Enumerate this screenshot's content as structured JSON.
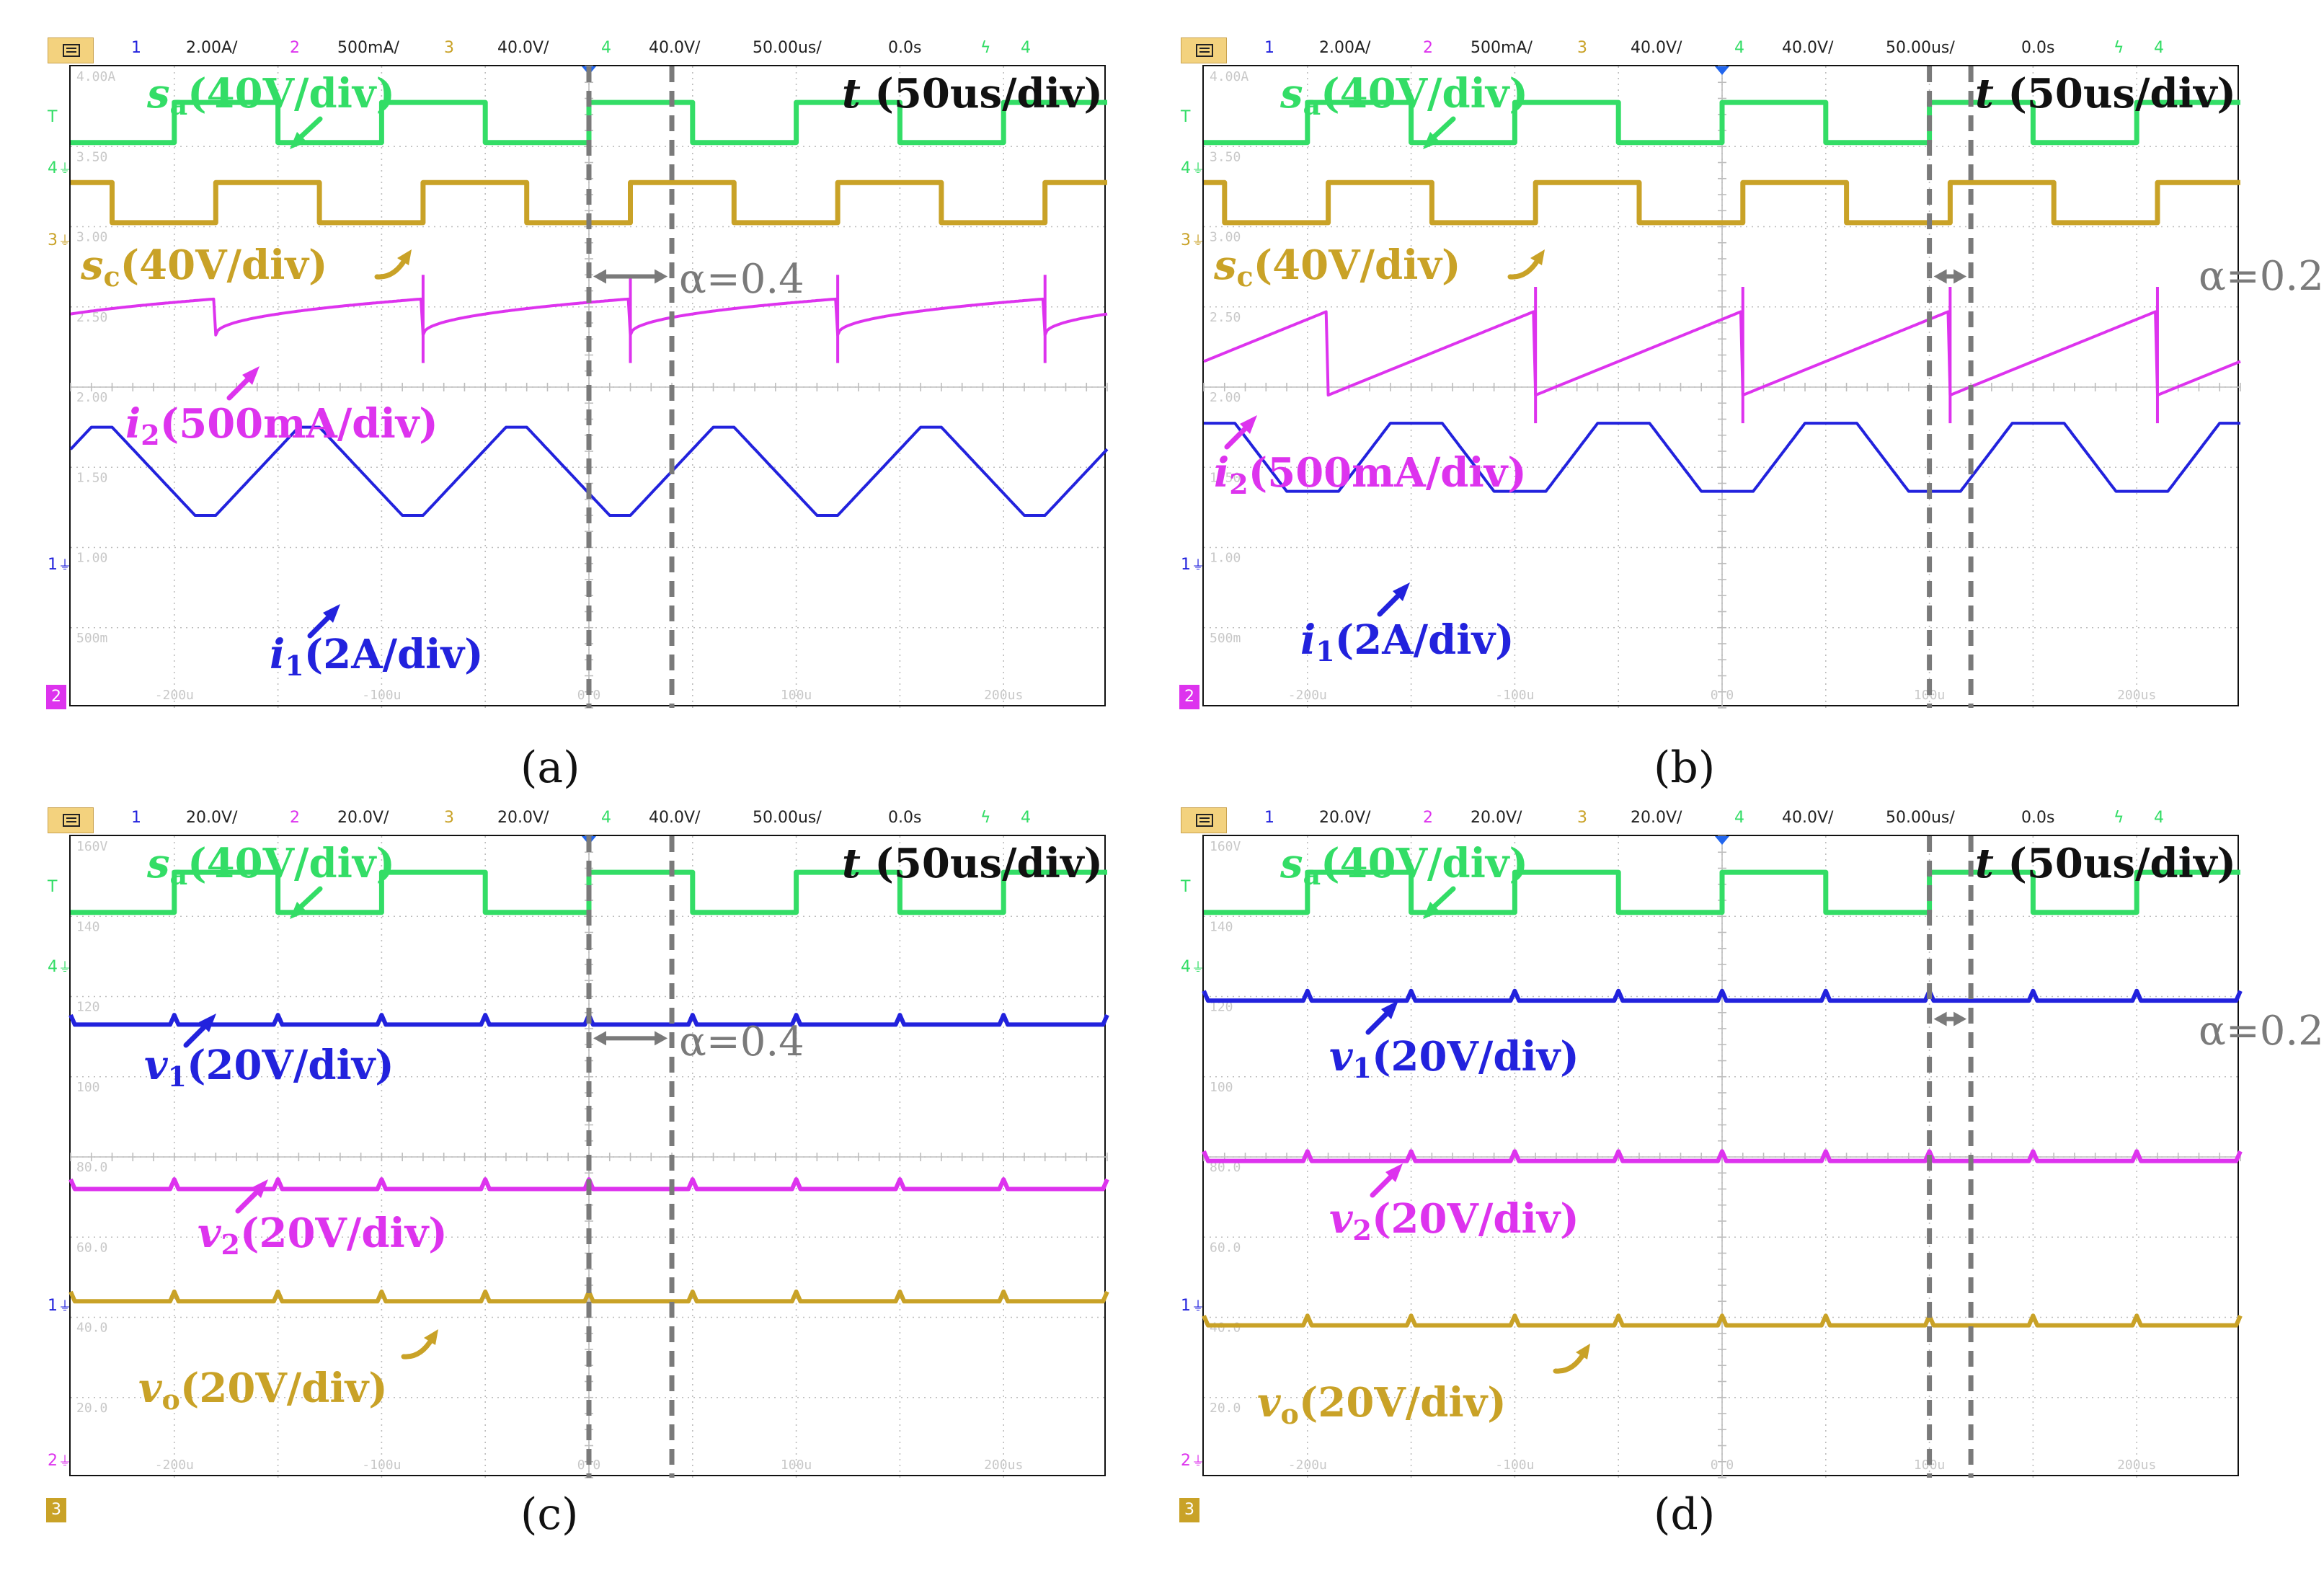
{
  "colors": {
    "ch1": "#2222dd",
    "ch2": "#dd33ee",
    "ch3": "#c9a227",
    "ch4": "#33dd66",
    "grid": "#bdbdbd",
    "cursor": "#7a7a7a",
    "chip": "#f3d27e"
  },
  "panels": [
    {
      "id": "a",
      "caption": "(a)",
      "toolbar": {
        "ch1_num": "1",
        "ch1_scale": "2.00A/",
        "ch2_num": "2",
        "ch2_scale": "500mA/",
        "ch3_num": "3",
        "ch3_scale": "40.0V/",
        "ch4_num": "4",
        "ch4_scale": "40.0V/",
        "timebase": "50.00us/",
        "delay": "0.0s",
        "trig_icon": "trigger-edge-icon",
        "trig_ch": "4"
      },
      "time_label": "(50us/div)",
      "alpha_label": "α=0.4",
      "x_ticks": [
        "-200u",
        "-100u",
        "0.0",
        "100u",
        "200us"
      ],
      "y_ticks": [
        "4.00A",
        "3.50",
        "3.00",
        "2.50",
        "2.00",
        "1.50",
        "1.00",
        "500m"
      ],
      "channel_markers": [
        {
          "label": "T",
          "color": "#33dd66"
        },
        {
          "label": "4",
          "color": "#33dd66"
        },
        {
          "label": "3",
          "color": "#c9a227"
        },
        {
          "label": "1",
          "color": "#2222dd"
        },
        {
          "label": "2",
          "color": "#dd33ee"
        }
      ],
      "signals": [
        {
          "sym": "s",
          "sub": "a",
          "scale": "(40V/div)",
          "color": "#33dd66"
        },
        {
          "sym": "s",
          "sub": "c",
          "scale": "(40V/div)",
          "color": "#c9a227"
        },
        {
          "sym": "i",
          "sub": "2",
          "scale": "(500mA/div)",
          "color": "#dd33ee"
        },
        {
          "sym": "i",
          "sub": "1",
          "scale": "(2A/div)",
          "color": "#2222dd"
        }
      ]
    },
    {
      "id": "b",
      "caption": "(b)",
      "toolbar": {
        "ch1_num": "1",
        "ch1_scale": "2.00A/",
        "ch2_num": "2",
        "ch2_scale": "500mA/",
        "ch3_num": "3",
        "ch3_scale": "40.0V/",
        "ch4_num": "4",
        "ch4_scale": "40.0V/",
        "timebase": "50.00us/",
        "delay": "0.0s",
        "trig_icon": "trigger-edge-icon",
        "trig_ch": "4"
      },
      "time_label": "(50us/div)",
      "alpha_label": "α=0.2",
      "x_ticks": [
        "-200u",
        "-100u",
        "0.0",
        "100u",
        "200us"
      ],
      "y_ticks": [
        "4.00A",
        "3.50",
        "3.00",
        "2.50",
        "2.00",
        "1.50",
        "1.00",
        "500m"
      ],
      "channel_markers": [
        {
          "label": "T",
          "color": "#33dd66"
        },
        {
          "label": "4",
          "color": "#33dd66"
        },
        {
          "label": "3",
          "color": "#c9a227"
        },
        {
          "label": "1",
          "color": "#2222dd"
        },
        {
          "label": "2",
          "color": "#dd33ee"
        }
      ],
      "signals": [
        {
          "sym": "s",
          "sub": "a",
          "scale": "(40V/div)",
          "color": "#33dd66"
        },
        {
          "sym": "s",
          "sub": "c",
          "scale": "(40V/div)",
          "color": "#c9a227"
        },
        {
          "sym": "i",
          "sub": "2",
          "scale": "(500mA/div)",
          "color": "#dd33ee"
        },
        {
          "sym": "i",
          "sub": "1",
          "scale": "(2A/div)",
          "color": "#2222dd"
        }
      ]
    },
    {
      "id": "c",
      "caption": "(c)",
      "toolbar": {
        "ch1_num": "1",
        "ch1_scale": "20.0V/",
        "ch2_num": "2",
        "ch2_scale": "20.0V/",
        "ch3_num": "3",
        "ch3_scale": "20.0V/",
        "ch4_num": "4",
        "ch4_scale": "40.0V/",
        "timebase": "50.00us/",
        "delay": "0.0s",
        "trig_icon": "trigger-edge-icon",
        "trig_ch": "4"
      },
      "time_label": "(50us/div)",
      "alpha_label": "α=0.4",
      "x_ticks": [
        "-200u",
        "-100u",
        "0.0",
        "100u",
        "200us"
      ],
      "y_ticks": [
        "160V",
        "140",
        "120",
        "100",
        "80.0",
        "60.0",
        "40.0",
        "20.0"
      ],
      "channel_markers": [
        {
          "label": "T",
          "color": "#33dd66"
        },
        {
          "label": "4",
          "color": "#33dd66"
        },
        {
          "label": "1",
          "color": "#2222dd"
        },
        {
          "label": "2",
          "color": "#dd33ee"
        },
        {
          "label": "3",
          "color": "#c9a227"
        }
      ],
      "signals": [
        {
          "sym": "s",
          "sub": "a",
          "scale": "(40V/div)",
          "color": "#33dd66"
        },
        {
          "sym": "v",
          "sub": "1",
          "scale": "(20V/div)",
          "color": "#2222dd"
        },
        {
          "sym": "v",
          "sub": "2",
          "scale": "(20V/div)",
          "color": "#dd33ee"
        },
        {
          "sym": "v",
          "sub": "o",
          "scale": "(20V/div)",
          "color": "#c9a227"
        }
      ]
    },
    {
      "id": "d",
      "caption": "(d)",
      "toolbar": {
        "ch1_num": "1",
        "ch1_scale": "20.0V/",
        "ch2_num": "2",
        "ch2_scale": "20.0V/",
        "ch3_num": "3",
        "ch3_scale": "20.0V/",
        "ch4_num": "4",
        "ch4_scale": "40.0V/",
        "timebase": "50.00us/",
        "delay": "0.0s",
        "trig_icon": "trigger-edge-icon",
        "trig_ch": "4"
      },
      "time_label": "(50us/div)",
      "alpha_label": "α=0.2",
      "x_ticks": [
        "-200u",
        "-100u",
        "0.0",
        "100u",
        "200us"
      ],
      "y_ticks": [
        "160V",
        "140",
        "120",
        "100",
        "80.0",
        "60.0",
        "40.0",
        "20.0"
      ],
      "channel_markers": [
        {
          "label": "T",
          "color": "#33dd66"
        },
        {
          "label": "4",
          "color": "#33dd66"
        },
        {
          "label": "1",
          "color": "#2222dd"
        },
        {
          "label": "2",
          "color": "#dd33ee"
        },
        {
          "label": "3",
          "color": "#c9a227"
        }
      ],
      "signals": [
        {
          "sym": "s",
          "sub": "a",
          "scale": "(40V/div)",
          "color": "#33dd66"
        },
        {
          "sym": "v",
          "sub": "1",
          "scale": "(20V/div)",
          "color": "#2222dd"
        },
        {
          "sym": "v",
          "sub": "2",
          "scale": "(20V/div)",
          "color": "#dd33ee"
        },
        {
          "sym": "v",
          "sub": "o",
          "scale": "(20V/div)",
          "color": "#c9a227"
        }
      ]
    }
  ],
  "chart_data": [
    {
      "type": "line",
      "title": "(a)",
      "xlabel": "t (50us/div)",
      "xlim_us": [
        -250,
        250
      ],
      "alpha": 0.4,
      "series": [
        {
          "name": "s_a",
          "unit": "V/div 40",
          "kind": "square",
          "period_us": 100,
          "high_from_us": -100,
          "duty": 0.5,
          "level_high_div": 3.55,
          "level_low_div": 3.15
        },
        {
          "name": "s_c",
          "unit": "V/div 40",
          "kind": "square",
          "period_us": 100,
          "high_from_us": -80,
          "duty": 0.5,
          "level_high_div": 2.5,
          "level_low_div": 2.0
        },
        {
          "name": "i2",
          "unit": "mA/div 500",
          "kind": "sawtooth",
          "period_us": 100,
          "reset_at_us": -80,
          "peak_div": 1.55,
          "trough_div": 1.1
        },
        {
          "name": "i1",
          "unit": "A/div 2",
          "kind": "trapezoid",
          "period_us": 100,
          "top_div": 0.1,
          "bottom_div": -0.5,
          "flat_top_us": 10
        }
      ]
    },
    {
      "type": "line",
      "title": "(b)",
      "xlabel": "t (50us/div)",
      "xlim_us": [
        -250,
        250
      ],
      "alpha": 0.2,
      "series": [
        {
          "name": "s_a",
          "unit": "V/div 40",
          "kind": "square",
          "period_us": 100,
          "high_from_us": -100,
          "duty": 0.5,
          "level_high_div": 3.55,
          "level_low_div": 3.15
        },
        {
          "name": "s_c",
          "unit": "V/div 40",
          "kind": "square",
          "period_us": 100,
          "high_from_us": -90,
          "duty": 0.5,
          "level_high_div": 2.5,
          "level_low_div": 2.0
        },
        {
          "name": "i2",
          "unit": "mA/div 500",
          "kind": "sawtooth",
          "period_us": 100,
          "reset_at_us": -90,
          "peak_div": 1.4,
          "trough_div": 0.35
        },
        {
          "name": "i1",
          "unit": "A/div 2",
          "kind": "trapezoid",
          "period_us": 100,
          "top_div": 0.15,
          "bottom_div": -0.3,
          "flat_top_us": 25
        }
      ]
    },
    {
      "type": "line",
      "title": "(c)",
      "xlabel": "t (50us/div)",
      "xlim_us": [
        -250,
        250
      ],
      "alpha": 0.4,
      "series": [
        {
          "name": "s_a",
          "unit": "V/div 40",
          "kind": "square",
          "period_us": 100,
          "high_from_us": -100,
          "duty": 0.5,
          "level_high_div": 3.55,
          "level_low_div": 3.15
        },
        {
          "name": "v1",
          "unit": "V/div 20",
          "kind": "dc",
          "value_V": 113
        },
        {
          "name": "v2",
          "unit": "V/div 20",
          "kind": "dc",
          "value_V": 72
        },
        {
          "name": "vo",
          "unit": "V/div 20",
          "kind": "dc",
          "value_V": 44
        }
      ]
    },
    {
      "type": "line",
      "title": "(d)",
      "xlabel": "t (50us/div)",
      "xlim_us": [
        -250,
        250
      ],
      "alpha": 0.2,
      "series": [
        {
          "name": "s_a",
          "unit": "V/div 40",
          "kind": "square",
          "period_us": 100,
          "high_from_us": -100,
          "duty": 0.5,
          "level_high_div": 3.55,
          "level_low_div": 3.15
        },
        {
          "name": "v1",
          "unit": "V/div 20",
          "kind": "dc",
          "value_V": 119
        },
        {
          "name": "v2",
          "unit": "V/div 20",
          "kind": "dc",
          "value_V": 79
        },
        {
          "name": "vo",
          "unit": "V/div 20",
          "kind": "dc",
          "value_V": 38
        }
      ]
    }
  ]
}
